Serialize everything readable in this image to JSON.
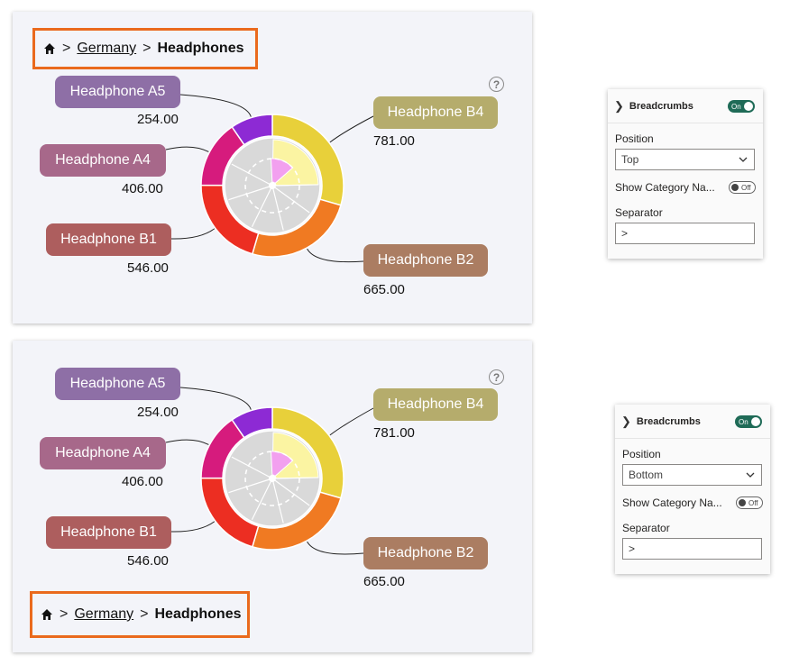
{
  "breadcrumb": {
    "separator": ">",
    "path": [
      "Germany",
      "Headphones"
    ]
  },
  "help": {
    "glyph": "?"
  },
  "series_labels": [
    {
      "name": "Headphone A5",
      "value": "254.00",
      "color": "#8e6fa6"
    },
    {
      "name": "Headphone A4",
      "value": "406.00",
      "color": "#a7688a"
    },
    {
      "name": "Headphone B1",
      "value": "546.00",
      "color": "#ad5e5e"
    },
    {
      "name": "Headphone B4",
      "value": "781.00",
      "color": "#b5ac6c"
    },
    {
      "name": "Headphone B2",
      "value": "665.00",
      "color": "#ab7d62"
    }
  ],
  "chart_data": [
    {
      "type": "pie",
      "categories": [
        "Headphone B4",
        "Headphone B2",
        "Headphone B1",
        "Headphone A4",
        "Headphone A5"
      ],
      "values": [
        781,
        665,
        546,
        406,
        254
      ],
      "colors": [
        "#e8d03a",
        "#f07a22",
        "#ec2e22",
        "#d61b7d",
        "#8d2ad4"
      ],
      "breadcrumb_position": "top"
    },
    {
      "type": "pie",
      "categories": [
        "Headphone B4",
        "Headphone B2",
        "Headphone B1",
        "Headphone A4",
        "Headphone A5"
      ],
      "values": [
        781,
        665,
        546,
        406,
        254
      ],
      "colors": [
        "#e8d03a",
        "#f07a22",
        "#ec2e22",
        "#d61b7d",
        "#8d2ad4"
      ],
      "breadcrumb_position": "bottom"
    }
  ],
  "panels": [
    {
      "header": "Breadcrumbs",
      "toggle": "On",
      "position_label": "Position",
      "position_value": "Top",
      "show_category_label": "Show Category Na...",
      "show_category_toggle": "Off",
      "separator_label": "Separator",
      "separator_value": ">"
    },
    {
      "header": "Breadcrumbs",
      "toggle": "On",
      "position_label": "Position",
      "position_value": "Bottom",
      "show_category_label": "Show Category Na...",
      "show_category_toggle": "Off",
      "separator_label": "Separator",
      "separator_value": ">"
    }
  ],
  "icons": {
    "home": "home-icon",
    "help": "help-icon",
    "chevron_right": "chevron-right-icon",
    "chevron_down": "chevron-down-icon"
  }
}
